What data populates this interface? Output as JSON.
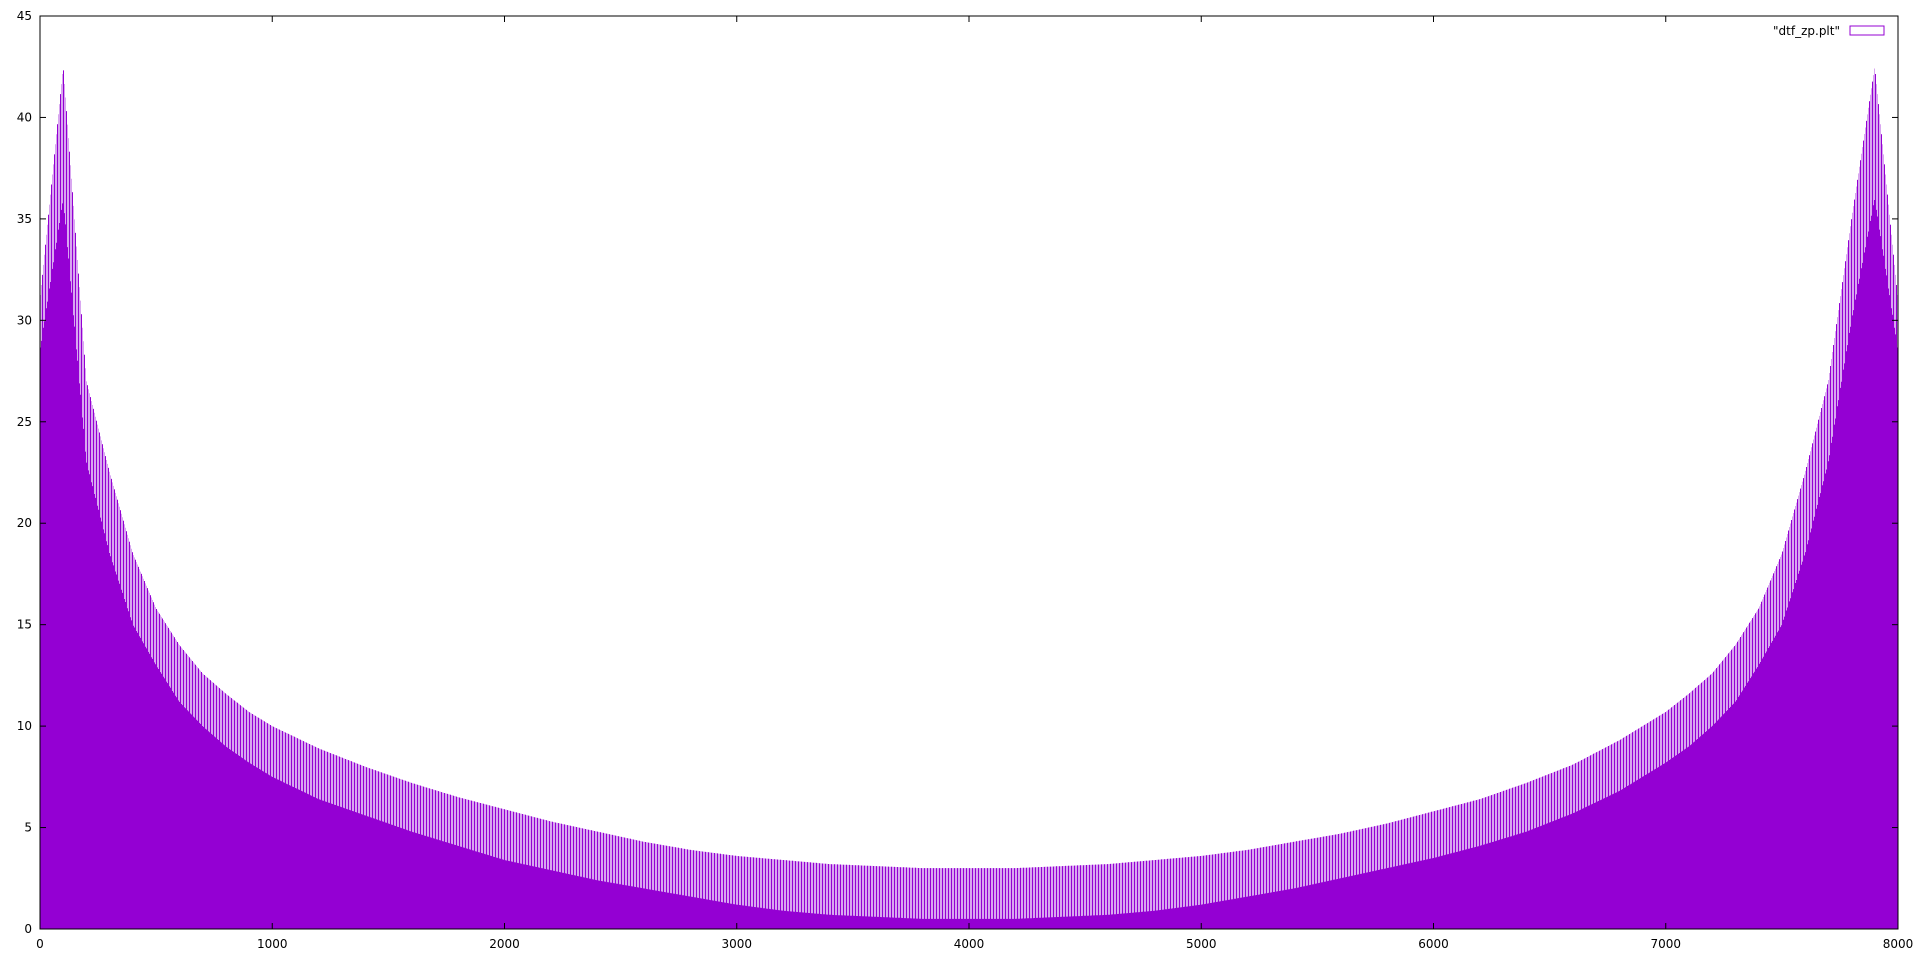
{
  "chart_data": {
    "type": "bar",
    "title": "",
    "xlabel": "",
    "ylabel": "",
    "xlim": [
      0,
      8000
    ],
    "ylim": [
      0,
      45
    ],
    "x_ticks": [
      "0",
      "1000",
      "2000",
      "3000",
      "4000",
      "5000",
      "6000",
      "7000",
      "8000"
    ],
    "y_ticks": [
      "0",
      "5",
      "10",
      "15",
      "20",
      "25",
      "30",
      "35",
      "40",
      "45"
    ],
    "grid": false,
    "legend_position": "top-right",
    "series": [
      {
        "name": "\"dtf_zp.plt\"",
        "color": "#9400d3",
        "style": "impulses",
        "x": [
          0,
          100,
          200,
          300,
          400,
          500,
          600,
          700,
          800,
          900,
          1000,
          1200,
          1400,
          1600,
          1800,
          2000,
          2200,
          2400,
          2600,
          2800,
          3000,
          3200,
          3400,
          3600,
          3800,
          4000,
          4200,
          4400,
          4600,
          4800,
          5000,
          5200,
          5400,
          5600,
          5800,
          6000,
          6200,
          6400,
          6600,
          6800,
          7000,
          7100,
          7200,
          7300,
          7400,
          7500,
          7600,
          7700,
          7800,
          7900,
          8000
        ],
        "envelope_max": [
          31,
          42.5,
          27,
          22.5,
          18.5,
          15.8,
          14,
          12.6,
          11.6,
          10.7,
          10,
          8.9,
          8,
          7.2,
          6.5,
          5.9,
          5.3,
          4.8,
          4.3,
          3.9,
          3.6,
          3.4,
          3.2,
          3.1,
          3.0,
          3.0,
          3.0,
          3.1,
          3.2,
          3.4,
          3.6,
          3.9,
          4.3,
          4.7,
          5.2,
          5.8,
          6.4,
          7.2,
          8.1,
          9.3,
          10.7,
          11.6,
          12.6,
          14,
          15.8,
          18.5,
          22.5,
          27,
          35,
          42.5,
          31
        ],
        "envelope_min": [
          28.5,
          36,
          23,
          18.5,
          15,
          13,
          11.2,
          10,
          9,
          8.2,
          7.5,
          6.4,
          5.6,
          4.8,
          4.1,
          3.4,
          2.9,
          2.4,
          2.0,
          1.6,
          1.2,
          0.9,
          0.7,
          0.6,
          0.5,
          0.5,
          0.5,
          0.6,
          0.7,
          0.9,
          1.2,
          1.6,
          2.0,
          2.5,
          3.0,
          3.5,
          4.1,
          4.8,
          5.7,
          6.8,
          8.2,
          9.0,
          10,
          11.2,
          13,
          15,
          18.5,
          23,
          30,
          36,
          28.5
        ]
      }
    ]
  }
}
